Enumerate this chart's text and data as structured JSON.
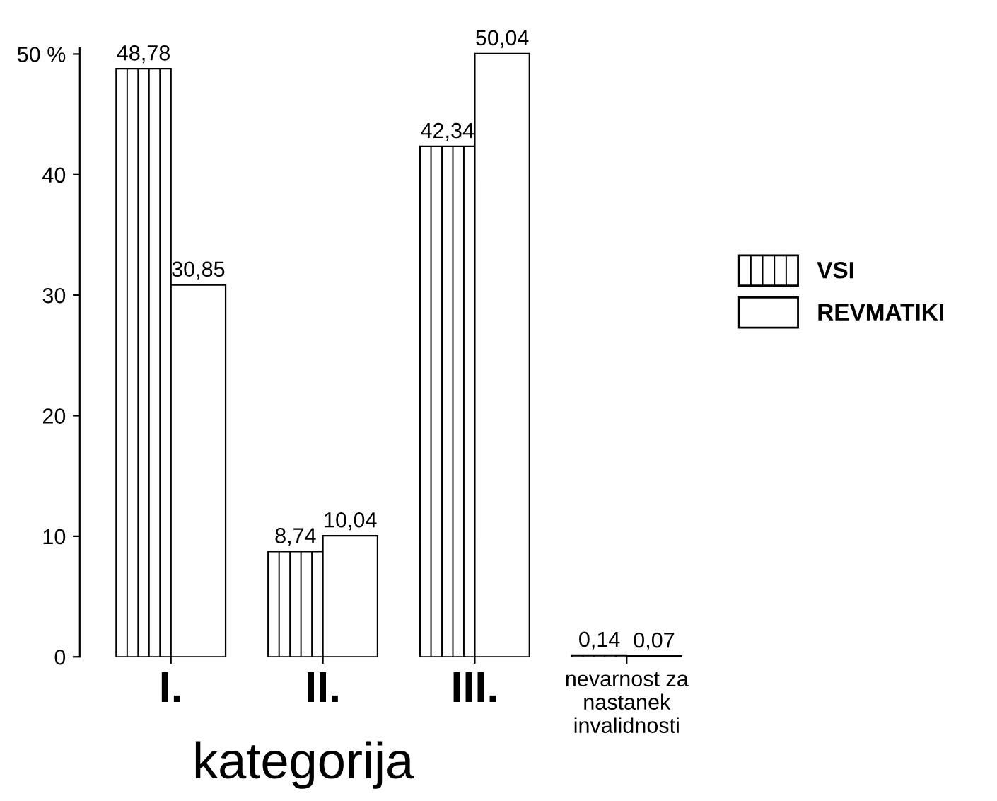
{
  "chart_data": {
    "type": "bar",
    "xlabel": "kategorija",
    "categories": [
      "I.",
      "II.",
      "III.",
      "nevarnost za\nnastanek\ninvalidnosti"
    ],
    "series": [
      {
        "name": "VSI",
        "color": "#ffffff",
        "values": [
          48.78,
          8.74,
          42.34,
          0.14
        ],
        "value_labels": [
          "48,78",
          "8,74",
          "42,34",
          "0,14"
        ]
      },
      {
        "name": "REVMATIKI",
        "color": "#ffffff",
        "values": [
          30.85,
          10.04,
          50.04,
          0.07
        ],
        "value_labels": [
          "30,85",
          "10,04",
          "50,04",
          "0,07"
        ]
      }
    ],
    "ylim": [
      0,
      50.5
    ],
    "yticks": [
      0,
      10,
      20,
      30,
      40,
      {
        "value": 50,
        "label": "50 %"
      }
    ],
    "grid": false,
    "legend": "right"
  }
}
